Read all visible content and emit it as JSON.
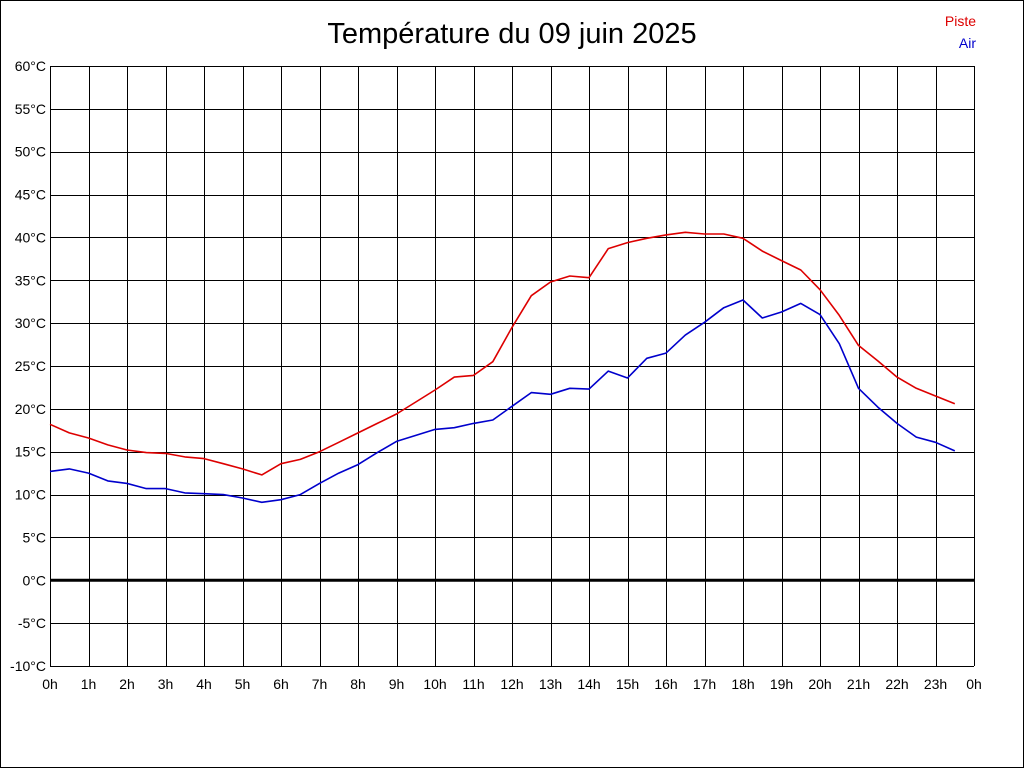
{
  "chart_data": {
    "type": "line",
    "title": "Température du 09 juin 2025",
    "xlabel": "",
    "ylabel": "",
    "x_tick_labels": [
      "0h",
      "1h",
      "2h",
      "3h",
      "4h",
      "5h",
      "6h",
      "7h",
      "8h",
      "9h",
      "10h",
      "11h",
      "12h",
      "13h",
      "14h",
      "15h",
      "16h",
      "17h",
      "18h",
      "19h",
      "20h",
      "21h",
      "22h",
      "23h",
      "0h"
    ],
    "y_tick_labels": [
      "60°C",
      "55°C",
      "50°C",
      "45°C",
      "40°C",
      "35°C",
      "30°C",
      "25°C",
      "20°C",
      "15°C",
      "10°C",
      "5°C",
      "0°C",
      "-5°C",
      "-10°C"
    ],
    "xlim": [
      0,
      24
    ],
    "ylim": [
      -10,
      60
    ],
    "grid": true,
    "zero_line": true,
    "legend_position": "top-right",
    "x": [
      0,
      0.5,
      1,
      1.5,
      2,
      2.5,
      3,
      3.5,
      4,
      4.5,
      5,
      5.5,
      6,
      6.5,
      7,
      7.5,
      8,
      8.5,
      9,
      9.5,
      10,
      10.5,
      11,
      11.5,
      12,
      12.5,
      13,
      13.5,
      14,
      14.5,
      15,
      15.5,
      16,
      16.5,
      17,
      17.5,
      18,
      18.5,
      19,
      19.5,
      20,
      20.5,
      21,
      21.5,
      22,
      22.5,
      23,
      23.5
    ],
    "series": [
      {
        "name": "Piste",
        "color": "#dd0000",
        "values": [
          18.2,
          17.2,
          16.6,
          15.8,
          15.2,
          14.9,
          14.8,
          14.4,
          14.2,
          13.6,
          13.0,
          12.3,
          13.6,
          14.1,
          15.0,
          16.1,
          17.2,
          18.3,
          19.4,
          20.8,
          22.2,
          23.7,
          23.9,
          25.5,
          29.5,
          33.2,
          34.8,
          35.5,
          35.3,
          38.7,
          39.4,
          39.9,
          40.3,
          40.6,
          40.4,
          40.4,
          39.9,
          38.4,
          37.3,
          36.2,
          33.9,
          30.9,
          27.4,
          25.6,
          23.7,
          22.4,
          21.5,
          20.6
        ]
      },
      {
        "name": "Air",
        "color": "#0000cc",
        "values": [
          12.7,
          13.0,
          12.5,
          11.6,
          11.3,
          10.7,
          10.7,
          10.2,
          10.1,
          10.0,
          9.6,
          9.1,
          9.4,
          10.0,
          11.3,
          12.5,
          13.5,
          14.9,
          16.2,
          16.9,
          17.6,
          17.8,
          18.3,
          18.7,
          20.3,
          21.9,
          21.7,
          22.4,
          22.3,
          24.4,
          23.6,
          25.9,
          26.5,
          28.6,
          30.1,
          31.8,
          32.7,
          30.6,
          31.3,
          32.3,
          31.0,
          27.6,
          22.4,
          20.2,
          18.3,
          16.7,
          16.1,
          15.1
        ]
      }
    ]
  }
}
